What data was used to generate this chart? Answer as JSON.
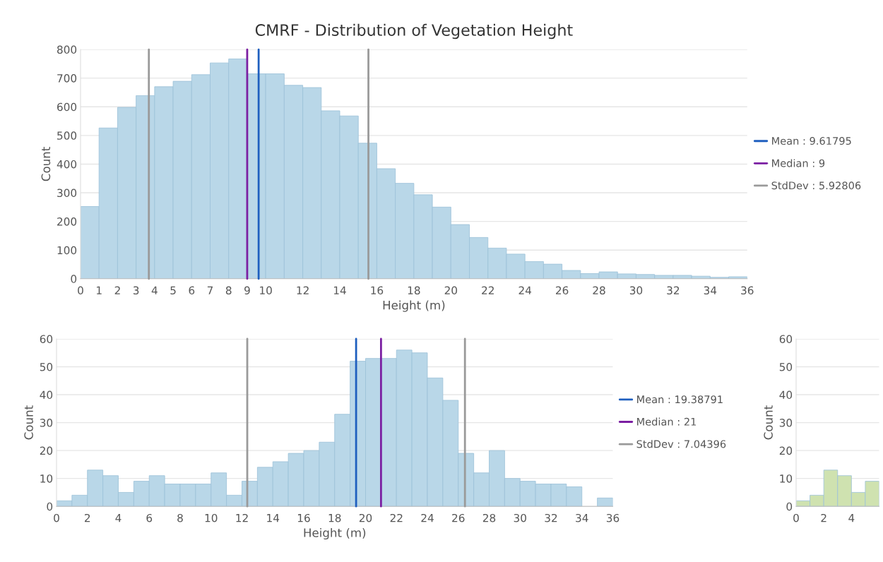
{
  "chart_data": [
    {
      "type": "histogram",
      "title": "CMRF - Distribution of Vegetation Height",
      "xlabel": "Height (m)",
      "ylabel": "Count",
      "bins": [
        0,
        1,
        2,
        3,
        4,
        5,
        6,
        7,
        8,
        9,
        10,
        11,
        12,
        13,
        14,
        15,
        16,
        17,
        18,
        19,
        20,
        21,
        22,
        23,
        24,
        25,
        26,
        27,
        28,
        29,
        30,
        31,
        32,
        33,
        34,
        35,
        36
      ],
      "values": [
        252,
        526,
        598,
        639,
        670,
        689,
        712,
        753,
        767,
        715,
        715,
        675,
        667,
        586,
        568,
        473,
        384,
        333,
        293,
        250,
        189,
        144,
        107,
        86,
        60,
        51,
        29,
        18,
        24,
        17,
        15,
        12,
        12,
        9,
        5,
        7
      ],
      "color": "#b9d7e8",
      "xlim": [
        0,
        36
      ],
      "xticks": [
        0,
        1,
        2,
        3,
        4,
        5,
        6,
        7,
        8,
        9,
        10,
        12,
        14,
        16,
        18,
        20,
        22,
        24,
        26,
        28,
        30,
        32,
        34,
        36
      ],
      "ylim": [
        0,
        800
      ],
      "yticks": [
        0,
        100,
        200,
        300,
        400,
        500,
        600,
        700,
        800
      ],
      "grid": "y",
      "legend": "right",
      "series": [
        {
          "type": "line",
          "name": "Mean : 9.61795",
          "color": "#1f5fbf",
          "x": [
            9.61795,
            9.61795
          ],
          "values": [
            0,
            800
          ]
        },
        {
          "type": "line",
          "name": "Median : 9",
          "color": "#7b1fa2",
          "x": [
            9,
            9
          ],
          "values": [
            0,
            800
          ]
        },
        {
          "type": "line",
          "name": "StdDev : 5.92806",
          "color": "#9a9a9a",
          "x": [
            3.68989,
            3.68989
          ],
          "values": [
            0,
            800
          ]
        },
        {
          "type": "line",
          "color": "#9a9a9a",
          "x": [
            15.54601,
            15.54601
          ],
          "values": [
            0,
            800
          ]
        }
      ]
    },
    {
      "type": "histogram",
      "xlabel": "Height (m)",
      "ylabel": "Count",
      "bins": [
        0,
        1,
        2,
        3,
        4,
        5,
        6,
        7,
        8,
        9,
        10,
        11,
        12,
        13,
        14,
        15,
        16,
        17,
        18,
        19,
        20,
        21,
        22,
        23,
        24,
        25,
        26,
        27,
        28,
        29,
        30,
        31,
        32,
        33,
        34,
        35,
        36
      ],
      "values": [
        2,
        4,
        13,
        11,
        5,
        9,
        11,
        8,
        8,
        8,
        12,
        4,
        9,
        14,
        16,
        19,
        20,
        23,
        33,
        52,
        53,
        53,
        56,
        55,
        46,
        38,
        19,
        12,
        20,
        10,
        9,
        8,
        8,
        7,
        0,
        3
      ],
      "color": "#b9d7e8",
      "xlim": [
        0,
        36
      ],
      "xticks": [
        0,
        2,
        4,
        6,
        8,
        10,
        12,
        14,
        16,
        18,
        20,
        22,
        24,
        26,
        28,
        30,
        32,
        34,
        36
      ],
      "ylim": [
        0,
        60
      ],
      "yticks": [
        0,
        10,
        20,
        30,
        40,
        50,
        60
      ],
      "grid": "y",
      "legend": "right",
      "series": [
        {
          "type": "line",
          "name": "Mean : 19.38791",
          "color": "#1f5fbf",
          "x": [
            19.38791,
            19.38791
          ],
          "values": [
            0,
            60
          ]
        },
        {
          "type": "line",
          "name": "Median : 21",
          "color": "#7b1fa2",
          "x": [
            21,
            21
          ],
          "values": [
            0,
            60
          ]
        },
        {
          "type": "line",
          "name": "StdDev : 7.04396",
          "color": "#9a9a9a",
          "x": [
            12.34395,
            12.34395
          ],
          "values": [
            0,
            60
          ]
        },
        {
          "type": "line",
          "color": "#9a9a9a",
          "x": [
            26.43187,
            26.43187
          ],
          "values": [
            0,
            60
          ]
        }
      ]
    },
    {
      "type": "histogram",
      "ylabel": "Count",
      "bins": [
        0,
        1,
        2,
        3,
        4,
        5,
        6
      ],
      "values": [
        2,
        4,
        13,
        11,
        5,
        9
      ],
      "color": "#cfe2b0",
      "xlim": [
        0,
        6
      ],
      "xticks": [
        0,
        2,
        4
      ],
      "ylim": [
        0,
        60
      ],
      "yticks": [
        0,
        10,
        20,
        30,
        40,
        50,
        60
      ],
      "grid": "y"
    }
  ]
}
